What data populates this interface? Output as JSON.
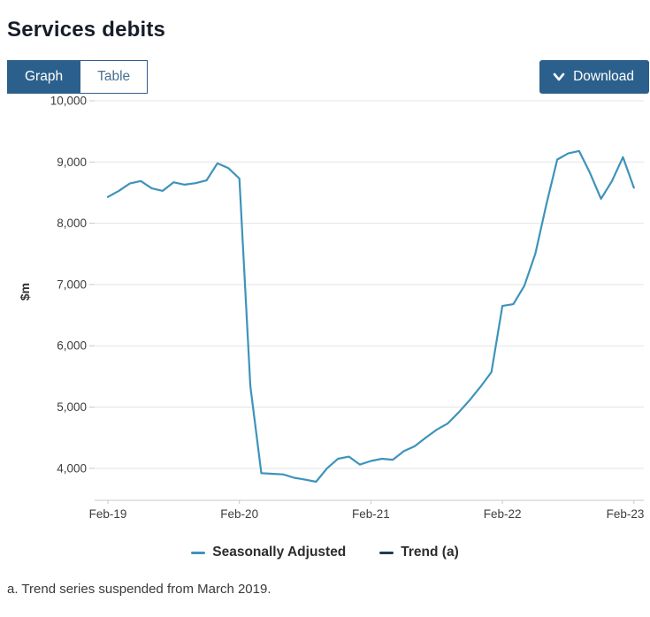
{
  "header": {
    "title": "Services debits"
  },
  "tabs": {
    "graph_label": "Graph",
    "table_label": "Table",
    "active": "Graph"
  },
  "toolbar": {
    "download_label": "Download"
  },
  "footnote": "a. Trend series suspended from March 2019.",
  "colors": {
    "accent_blue": "#2c608c",
    "seasonally_adjusted_line": "#3e93bb",
    "trend_line": "#1d3c52",
    "gridline": "#e5e5e5",
    "axis": "#c8c8c8",
    "tick_text": "#3d3d3d"
  },
  "chart_data": {
    "type": "line",
    "title": "Services debits",
    "xlabel": "",
    "ylabel": "$m",
    "grid": "horizontal",
    "legend_position": "bottom",
    "ylim": [
      3463,
      10000
    ],
    "y_ticks": [
      {
        "v": 10000,
        "label": "10,000"
      },
      {
        "v": 9000,
        "label": "9,000"
      },
      {
        "v": 8000,
        "label": "8,000"
      },
      {
        "v": 7000,
        "label": "7,000"
      },
      {
        "v": 6000,
        "label": "6,000"
      },
      {
        "v": 5000,
        "label": "5,000"
      },
      {
        "v": 4000,
        "label": "4,000"
      }
    ],
    "x_ticks": [
      {
        "index": 0,
        "label": "Feb-19"
      },
      {
        "index": 12,
        "label": "Feb-20"
      },
      {
        "index": 24,
        "label": "Feb-21"
      },
      {
        "index": 36,
        "label": "Feb-22"
      },
      {
        "index": 48,
        "label": "Feb-23"
      }
    ],
    "categories": [
      "Feb-19",
      "Mar-19",
      "Apr-19",
      "May-19",
      "Jun-19",
      "Jul-19",
      "Aug-19",
      "Sep-19",
      "Oct-19",
      "Nov-19",
      "Dec-19",
      "Jan-20",
      "Feb-20",
      "Mar-20",
      "Apr-20",
      "May-20",
      "Jun-20",
      "Jul-20",
      "Aug-20",
      "Sep-20",
      "Oct-20",
      "Nov-20",
      "Dec-20",
      "Jan-21",
      "Feb-21",
      "Mar-21",
      "Apr-21",
      "May-21",
      "Jun-21",
      "Jul-21",
      "Aug-21",
      "Sep-21",
      "Oct-21",
      "Nov-21",
      "Dec-21",
      "Jan-22",
      "Feb-22",
      "Mar-22",
      "Apr-22",
      "May-22",
      "Jun-22",
      "Jul-22",
      "Aug-22",
      "Sep-22",
      "Oct-22",
      "Nov-22",
      "Dec-22",
      "Jan-23",
      "Feb-23"
    ],
    "series": [
      {
        "name": "Seasonally Adjusted",
        "color": "#3e93bb",
        "values": [
          8430,
          8530,
          8650,
          8690,
          8570,
          8530,
          8670,
          8630,
          8655,
          8700,
          8980,
          8900,
          8730,
          5340,
          3920,
          3910,
          3900,
          3845,
          3815,
          3780,
          4000,
          4155,
          4190,
          4060,
          4120,
          4155,
          4140,
          4280,
          4360,
          4500,
          4630,
          4730,
          4910,
          5110,
          5330,
          5570,
          6650,
          6680,
          6980,
          7500,
          8300,
          9040,
          9140,
          9180,
          8820,
          8400,
          8690,
          9080,
          8580
        ]
      },
      {
        "name": "Trend (a)",
        "color": "#1d3c52",
        "values": [],
        "note": "suspended"
      }
    ]
  }
}
